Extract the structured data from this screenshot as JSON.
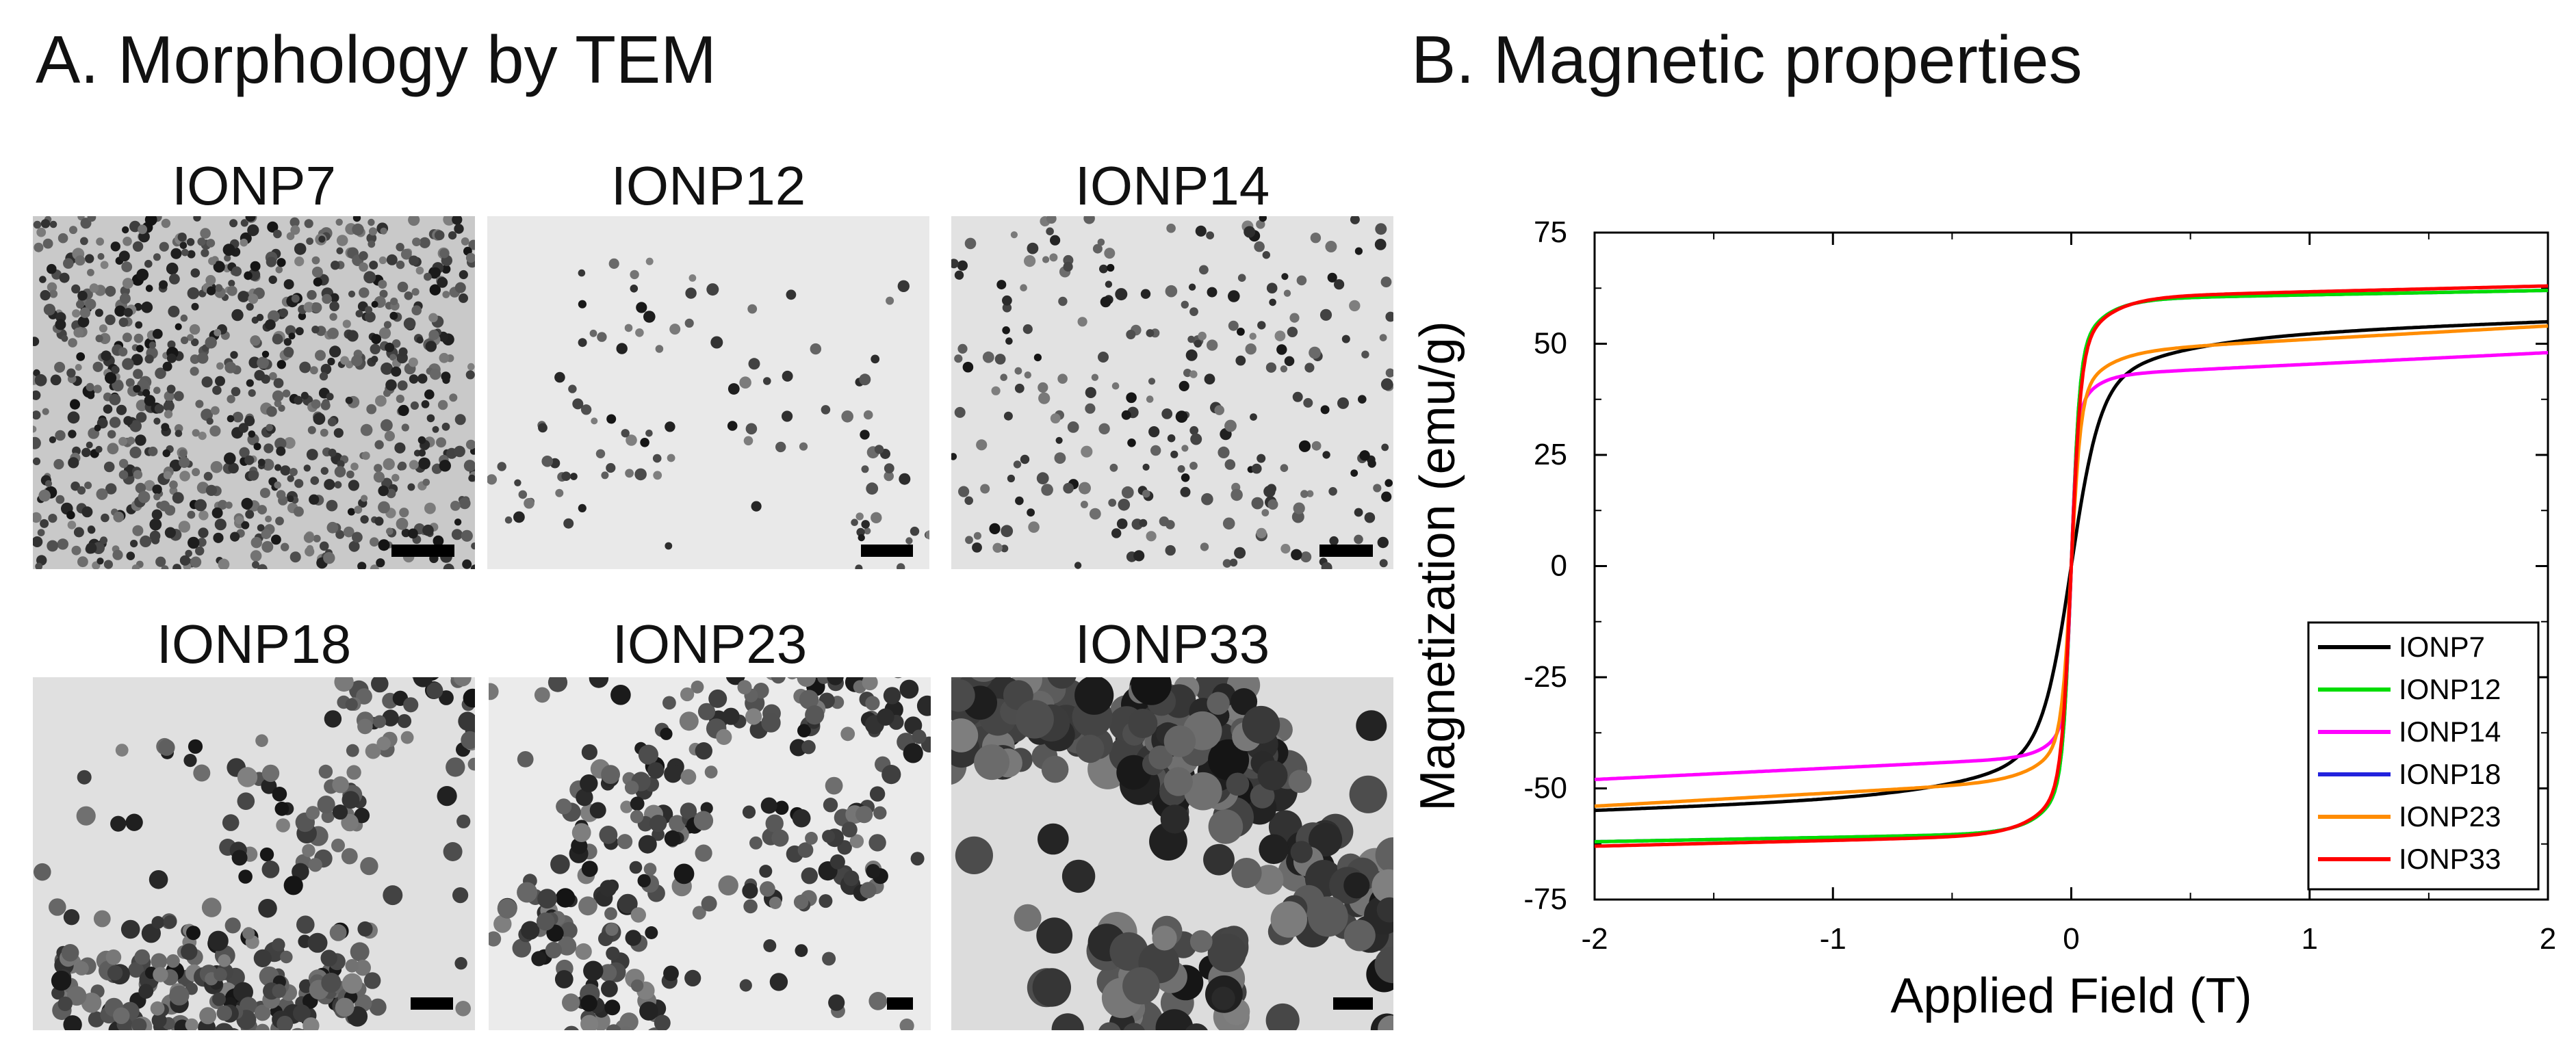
{
  "panel_a": {
    "title": "A. Morphology by TEM",
    "images": [
      {
        "label": "IONP7",
        "particle_size": "small",
        "density": "dense",
        "tone": "#c9c9c9"
      },
      {
        "label": "IONP12",
        "particle_size": "small",
        "density": "sparse-clusters",
        "tone": "#e9e9e9"
      },
      {
        "label": "IONP14",
        "particle_size": "small",
        "density": "medium",
        "tone": "#e2e2e2"
      },
      {
        "label": "IONP18",
        "particle_size": "medium",
        "density": "clusters",
        "tone": "#e0e0e0"
      },
      {
        "label": "IONP23",
        "particle_size": "medium",
        "density": "clusters",
        "tone": "#ebebeb"
      },
      {
        "label": "IONP33",
        "particle_size": "large",
        "density": "dense-clusters",
        "tone": "#dcdcdc"
      }
    ]
  },
  "panel_b": {
    "title": "B. Magnetic properties"
  },
  "chart_data": {
    "type": "line",
    "title": "B. Magnetic properties",
    "xlabel": "Applied Field (T)",
    "ylabel": "Magnetization (emu/g)",
    "xlim": [
      -2,
      2
    ],
    "ylim": [
      -75,
      75
    ],
    "xticks": [
      "-2",
      "-1",
      "0",
      "1",
      "2"
    ],
    "yticks": [
      "75",
      "50",
      "25",
      "0",
      "-25",
      "-50",
      "-75"
    ],
    "xtick_values": [
      -2,
      -1,
      0,
      1,
      2
    ],
    "ytick_values": [
      75,
      50,
      25,
      0,
      -25,
      -50,
      -75
    ],
    "legend_position": "bottom-right",
    "series": [
      {
        "name": "IONP7",
        "color": "#000000",
        "ms": 55,
        "hk": 0.12,
        "slope": 2.0
      },
      {
        "name": "IONP12",
        "color": "#00dd00",
        "ms": 62,
        "hk": 0.035,
        "slope": 1.0
      },
      {
        "name": "IONP14",
        "color": "#ff00ff",
        "ms": 48,
        "hk": 0.025,
        "slope": 2.6
      },
      {
        "name": "IONP18",
        "color": "#2222dd",
        "ms": 62,
        "hk": 0.035,
        "slope": 1.0
      },
      {
        "name": "IONP23",
        "color": "#ff8c00",
        "ms": 54,
        "hk": 0.04,
        "slope": 3.0
      },
      {
        "name": "IONP33",
        "color": "#ff0000",
        "ms": 63,
        "hk": 0.04,
        "slope": 1.3
      }
    ]
  }
}
